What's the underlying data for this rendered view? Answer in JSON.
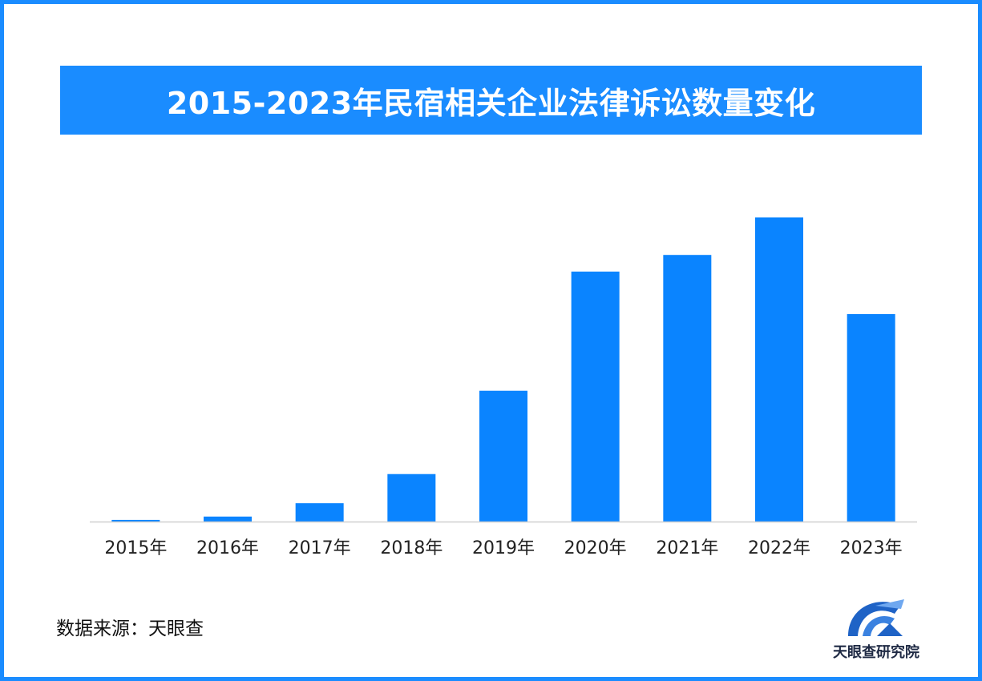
{
  "chart_data": {
    "type": "bar",
    "title": "2015-2023年民宿相关企业法律诉讼数量变化",
    "categories": [
      "2015年",
      "2016年",
      "2017年",
      "2018年",
      "2019年",
      "2020年",
      "2021年",
      "2022年",
      "2023年"
    ],
    "values": [
      2,
      6,
      22,
      57,
      157,
      300,
      320,
      365,
      249
    ],
    "xlabel": "",
    "ylabel": "",
    "ylim": [
      0,
      400
    ],
    "grid": false,
    "bar_color": "#0a84ff"
  },
  "footer": {
    "source": "数据来源：天眼查",
    "logo_text": "天眼查研究院"
  },
  "colors": {
    "border": "#1a8cff",
    "title_bg": "#1a8cff",
    "logo_blue": "#1f63c6"
  }
}
